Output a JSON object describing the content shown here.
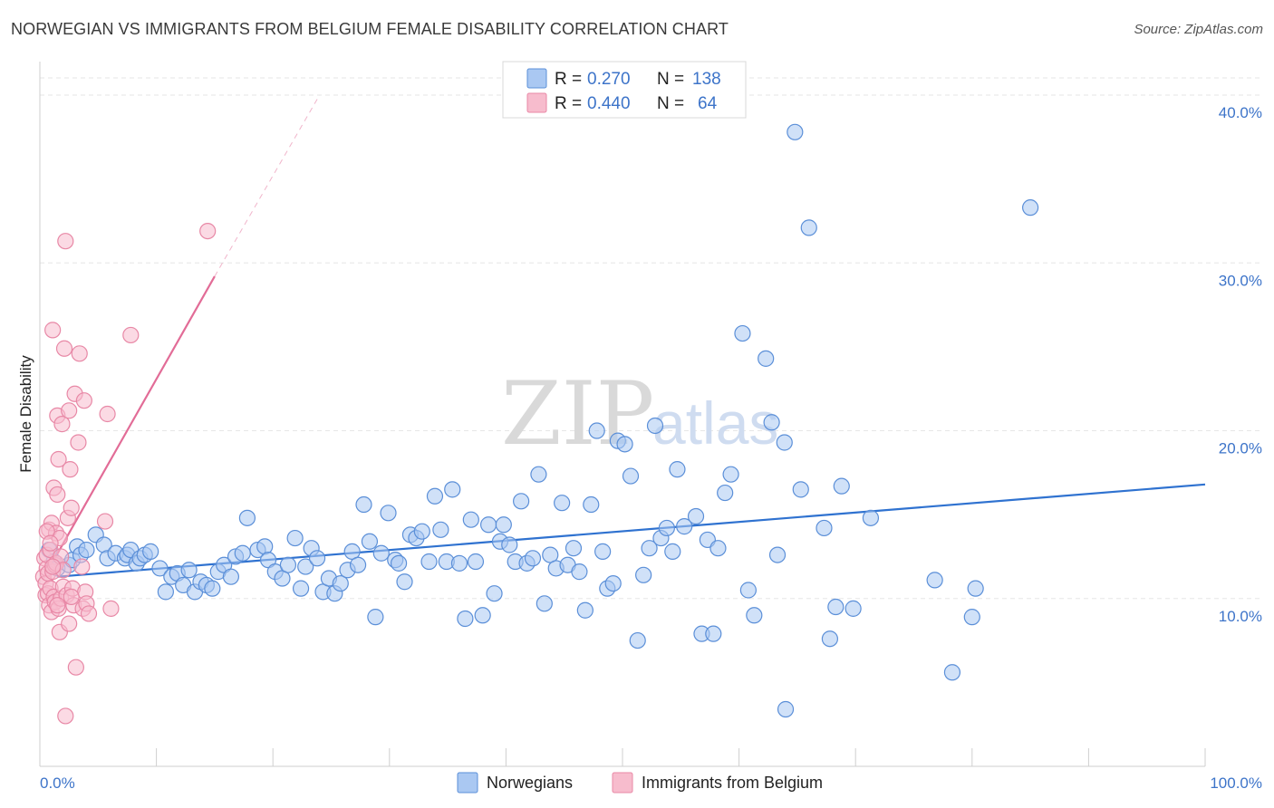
{
  "title": "NORWEGIAN VS IMMIGRANTS FROM BELGIUM FEMALE DISABILITY CORRELATION CHART",
  "source": "Source: ZipAtlas.com",
  "watermark": {
    "zip": "ZIP",
    "atlas": "atlas"
  },
  "colors": {
    "blue_fill": "#aac8f2",
    "blue_stroke": "#5b8fd8",
    "blue_line": "#2f72d0",
    "pink_fill": "#f7bccd",
    "pink_stroke": "#e888a6",
    "pink_line": "#e26c97",
    "tick_text": "#3d74c9",
    "grid": "#e6e6e6"
  },
  "legend": {
    "rows": [
      {
        "r_label": "R =",
        "r_value": "0.270",
        "n_label": "N =",
        "n_value": "138",
        "series": "blue"
      },
      {
        "r_label": "R =",
        "r_value": "0.440",
        "n_label": "N =",
        "n_value": "64",
        "series": "pink"
      }
    ]
  },
  "bottom_legend": {
    "items": [
      {
        "label": "Norwegians",
        "series": "blue"
      },
      {
        "label": "Immigrants from Belgium",
        "series": "pink"
      }
    ]
  },
  "chart_data": {
    "type": "scatter",
    "title": "NORWEGIAN VS IMMIGRANTS FROM BELGIUM FEMALE DISABILITY CORRELATION CHART",
    "xlabel": "",
    "ylabel": "Female Disability",
    "xlim": [
      0,
      100
    ],
    "ylim": [
      0,
      42
    ],
    "x_tick_labels": [
      "0.0%",
      "100.0%"
    ],
    "y_ticks": [
      10,
      20,
      30,
      40
    ],
    "y_tick_labels": [
      "10.0%",
      "20.0%",
      "30.0%",
      "40.0%"
    ],
    "grid": true,
    "legend_position": "top-center",
    "series": [
      {
        "name": "Norwegians",
        "r": 0.27,
        "n": 138,
        "trend": {
          "x0": 1.5,
          "y0": 11.3,
          "x1": 100,
          "y1": 16.8
        },
        "points": [
          [
            0.8,
            12.9
          ],
          [
            1.2,
            12.2
          ],
          [
            1.5,
            11.8
          ],
          [
            2.5,
            12.0
          ],
          [
            2.8,
            12.3
          ],
          [
            3.2,
            13.1
          ],
          [
            3.5,
            12.6
          ],
          [
            4.0,
            12.9
          ],
          [
            4.8,
            13.8
          ],
          [
            5.5,
            13.2
          ],
          [
            5.8,
            12.4
          ],
          [
            6.5,
            12.7
          ],
          [
            7.3,
            12.4
          ],
          [
            7.5,
            12.6
          ],
          [
            7.8,
            12.9
          ],
          [
            8.3,
            12.1
          ],
          [
            8.6,
            12.4
          ],
          [
            9.0,
            12.6
          ],
          [
            9.5,
            12.8
          ],
          [
            10.3,
            11.8
          ],
          [
            10.8,
            10.4
          ],
          [
            11.3,
            11.3
          ],
          [
            11.8,
            11.5
          ],
          [
            12.3,
            10.8
          ],
          [
            12.8,
            11.7
          ],
          [
            13.3,
            10.4
          ],
          [
            13.8,
            11.0
          ],
          [
            14.3,
            10.8
          ],
          [
            14.8,
            10.6
          ],
          [
            15.3,
            11.6
          ],
          [
            15.8,
            12.0
          ],
          [
            16.4,
            11.3
          ],
          [
            16.8,
            12.5
          ],
          [
            17.4,
            12.7
          ],
          [
            17.8,
            14.8
          ],
          [
            18.7,
            12.9
          ],
          [
            19.3,
            13.1
          ],
          [
            19.6,
            12.3
          ],
          [
            20.2,
            11.6
          ],
          [
            20.8,
            11.2
          ],
          [
            21.3,
            12.0
          ],
          [
            21.9,
            13.6
          ],
          [
            22.4,
            10.6
          ],
          [
            22.8,
            11.9
          ],
          [
            23.3,
            13.0
          ],
          [
            23.8,
            12.4
          ],
          [
            24.3,
            10.4
          ],
          [
            24.8,
            11.2
          ],
          [
            25.3,
            10.3
          ],
          [
            25.8,
            10.9
          ],
          [
            26.4,
            11.7
          ],
          [
            26.8,
            12.8
          ],
          [
            27.3,
            12.0
          ],
          [
            27.8,
            15.6
          ],
          [
            28.3,
            13.4
          ],
          [
            28.8,
            8.9
          ],
          [
            29.3,
            12.7
          ],
          [
            29.9,
            15.1
          ],
          [
            30.5,
            12.3
          ],
          [
            30.8,
            12.1
          ],
          [
            31.3,
            11.0
          ],
          [
            31.8,
            13.8
          ],
          [
            32.3,
            13.6
          ],
          [
            32.8,
            14.0
          ],
          [
            33.4,
            12.2
          ],
          [
            33.9,
            16.1
          ],
          [
            34.4,
            14.1
          ],
          [
            34.9,
            12.2
          ],
          [
            35.4,
            16.5
          ],
          [
            36.0,
            12.1
          ],
          [
            36.5,
            8.8
          ],
          [
            37.0,
            14.7
          ],
          [
            37.4,
            12.2
          ],
          [
            38.0,
            9.0
          ],
          [
            38.5,
            14.4
          ],
          [
            39.0,
            10.3
          ],
          [
            39.5,
            13.4
          ],
          [
            39.8,
            14.4
          ],
          [
            40.3,
            13.2
          ],
          [
            40.8,
            12.2
          ],
          [
            41.3,
            15.8
          ],
          [
            41.8,
            12.1
          ],
          [
            42.3,
            12.4
          ],
          [
            42.8,
            17.4
          ],
          [
            43.3,
            9.7
          ],
          [
            43.8,
            12.6
          ],
          [
            44.3,
            11.8
          ],
          [
            44.8,
            15.7
          ],
          [
            45.3,
            12.0
          ],
          [
            45.8,
            13.0
          ],
          [
            46.3,
            11.6
          ],
          [
            46.8,
            9.3
          ],
          [
            47.3,
            15.6
          ],
          [
            47.8,
            20.0
          ],
          [
            48.3,
            12.8
          ],
          [
            48.7,
            10.6
          ],
          [
            49.2,
            10.9
          ],
          [
            49.6,
            19.4
          ],
          [
            50.2,
            19.2
          ],
          [
            50.7,
            17.3
          ],
          [
            51.3,
            7.5
          ],
          [
            51.8,
            11.4
          ],
          [
            52.3,
            13.0
          ],
          [
            52.8,
            20.3
          ],
          [
            53.3,
            13.6
          ],
          [
            53.8,
            14.2
          ],
          [
            54.3,
            12.8
          ],
          [
            54.7,
            17.7
          ],
          [
            55.3,
            14.3
          ],
          [
            56.3,
            14.9
          ],
          [
            56.8,
            7.9
          ],
          [
            57.3,
            13.5
          ],
          [
            57.8,
            7.9
          ],
          [
            58.2,
            13.0
          ],
          [
            58.8,
            16.3
          ],
          [
            59.3,
            17.4
          ],
          [
            60.3,
            25.8
          ],
          [
            60.8,
            10.5
          ],
          [
            61.3,
            9.0
          ],
          [
            62.3,
            24.3
          ],
          [
            62.8,
            20.5
          ],
          [
            63.3,
            12.6
          ],
          [
            63.9,
            19.3
          ],
          [
            64.8,
            37.8
          ],
          [
            65.3,
            16.5
          ],
          [
            66.0,
            32.1
          ],
          [
            67.3,
            14.2
          ],
          [
            67.8,
            7.6
          ],
          [
            68.3,
            9.5
          ],
          [
            68.8,
            16.7
          ],
          [
            69.8,
            9.4
          ],
          [
            71.3,
            14.8
          ],
          [
            76.8,
            11.1
          ],
          [
            78.3,
            5.6
          ],
          [
            80.0,
            8.9
          ],
          [
            80.3,
            10.6
          ],
          [
            64.0,
            3.4
          ],
          [
            85.0,
            33.3
          ]
        ]
      },
      {
        "name": "Immigrants from Belgium",
        "r": 0.44,
        "n": 64,
        "trend": {
          "x0": 0.3,
          "y0": 11.2,
          "x1": 15.0,
          "y1": 29.2,
          "dashed_to_x": 24.0,
          "dashed_to_y": 40.0
        },
        "points": [
          [
            0.3,
            11.3
          ],
          [
            0.4,
            12.4
          ],
          [
            0.5,
            10.9
          ],
          [
            0.5,
            10.2
          ],
          [
            0.6,
            11.8
          ],
          [
            0.6,
            12.6
          ],
          [
            0.7,
            10.3
          ],
          [
            0.7,
            11.5
          ],
          [
            0.8,
            14.1
          ],
          [
            0.8,
            9.6
          ],
          [
            0.9,
            12.9
          ],
          [
            0.9,
            10.6
          ],
          [
            1.0,
            14.5
          ],
          [
            1.0,
            9.2
          ],
          [
            1.1,
            11.6
          ],
          [
            1.1,
            26.0
          ],
          [
            1.2,
            10.1
          ],
          [
            1.2,
            16.6
          ],
          [
            1.3,
            12.0
          ],
          [
            1.3,
            9.8
          ],
          [
            1.4,
            13.9
          ],
          [
            1.4,
            12.1
          ],
          [
            1.5,
            16.2
          ],
          [
            1.5,
            20.9
          ],
          [
            1.6,
            9.4
          ],
          [
            1.6,
            18.3
          ],
          [
            1.7,
            13.6
          ],
          [
            1.7,
            8.0
          ],
          [
            1.8,
            12.5
          ],
          [
            1.8,
            10.0
          ],
          [
            1.9,
            20.4
          ],
          [
            2.0,
            11.7
          ],
          [
            2.0,
            10.7
          ],
          [
            2.1,
            24.9
          ],
          [
            2.2,
            31.3
          ],
          [
            2.2,
            3.0
          ],
          [
            2.3,
            10.2
          ],
          [
            2.4,
            14.8
          ],
          [
            2.5,
            8.5
          ],
          [
            2.5,
            21.2
          ],
          [
            2.6,
            17.7
          ],
          [
            2.7,
            15.4
          ],
          [
            2.8,
            10.6
          ],
          [
            2.9,
            9.6
          ],
          [
            3.0,
            22.2
          ],
          [
            3.1,
            5.9
          ],
          [
            3.3,
            19.3
          ],
          [
            3.4,
            24.6
          ],
          [
            3.6,
            11.9
          ],
          [
            3.7,
            9.4
          ],
          [
            3.8,
            21.8
          ],
          [
            3.9,
            10.4
          ],
          [
            4.0,
            9.7
          ],
          [
            4.2,
            9.1
          ],
          [
            5.6,
            14.6
          ],
          [
            5.8,
            21.0
          ],
          [
            6.1,
            9.4
          ],
          [
            7.8,
            25.7
          ],
          [
            14.4,
            31.9
          ],
          [
            0.6,
            14.0
          ],
          [
            0.9,
            13.3
          ],
          [
            1.1,
            11.9
          ],
          [
            2.7,
            10.1
          ],
          [
            1.5,
            9.6
          ]
        ]
      }
    ]
  }
}
